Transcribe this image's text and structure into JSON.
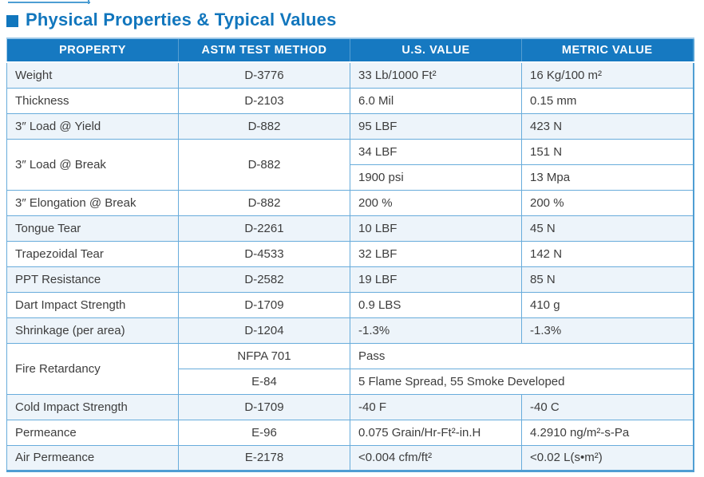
{
  "title": {
    "text": "Physical Properties & Typical Values"
  },
  "colors": {
    "accent_blue": "#1176bd",
    "header_bg": "#1679c1",
    "shaded_row_bg": "#edf4fa",
    "border_blue": "#68acdb",
    "outer_border": "#4f9ed3"
  },
  "table": {
    "headers": [
      "PROPERTY",
      "ASTM TEST METHOD",
      "U.S. VALUE",
      "METRIC VALUE"
    ],
    "rows": [
      {
        "property": "Weight",
        "method": "D-3776",
        "us": "33 Lb/1000 Ft²",
        "metric": "16 Kg/100 m²"
      },
      {
        "property": "Thickness",
        "method": "D-2103",
        "us": "6.0 Mil",
        "metric": "0.15 mm"
      },
      {
        "property": "3″ Load @ Yield",
        "method": "D-882",
        "us": "95 LBF",
        "metric": "423 N"
      },
      {
        "property": "3″ Load @ Break",
        "method": "D-882",
        "sub": [
          {
            "us": "34 LBF",
            "metric": "151 N"
          },
          {
            "us": "1900 psi",
            "metric": "13 Mpa"
          }
        ]
      },
      {
        "property": "3″ Elongation @ Break",
        "method": "D-882",
        "us": "200 %",
        "metric": "200 %"
      },
      {
        "property": "Tongue Tear",
        "method": "D-2261",
        "us": "10 LBF",
        "metric": "45 N"
      },
      {
        "property": "Trapezoidal Tear",
        "method": "D-4533",
        "us": "32 LBF",
        "metric": "142 N"
      },
      {
        "property": "PPT Resistance",
        "method": "D-2582",
        "us": "19 LBF",
        "metric": "85 N"
      },
      {
        "property": "Dart Impact Strength",
        "method": "D-1709",
        "us": "0.9 LBS",
        "metric": "410 g"
      },
      {
        "property": "Shrinkage (per area)",
        "method": "D-1204",
        "us": "-1.3%",
        "metric": "-1.3%"
      },
      {
        "property": "Fire Retardancy",
        "sub": [
          {
            "method": "NFPA 701",
            "value": "Pass"
          },
          {
            "method": "E-84",
            "value": "5 Flame Spread, 55 Smoke Developed"
          }
        ]
      },
      {
        "property": "Cold Impact Strength",
        "method": "D-1709",
        "us": "-40 F",
        "metric": "-40 C"
      },
      {
        "property": "Permeance",
        "method": "E-96",
        "us": "0.075 Grain/Hr-Ft²-in.H",
        "metric": "4.2910 ng/m²-s-Pa"
      },
      {
        "property": "Air Permeance",
        "method": "E-2178",
        "us": "<0.004 cfm/ft²",
        "metric": "<0.02 L(s•m²)"
      }
    ]
  }
}
